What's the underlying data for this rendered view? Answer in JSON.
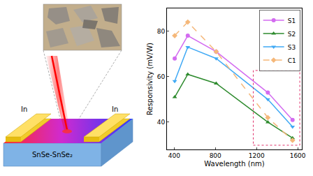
{
  "chart_data": {
    "type": "line",
    "x_label": "Wavelength (nm)",
    "y_label": "Responsivity (mV/W)",
    "x": [
      405,
      532,
      808,
      1310,
      1550
    ],
    "series": [
      {
        "name": "S1",
        "color": "#d36bf0",
        "marker": "circle",
        "line_style": "solid",
        "values": [
          68,
          78,
          71,
          53,
          41
        ]
      },
      {
        "name": "S2",
        "color": "#2e8b2e",
        "marker": "triangle-up",
        "line_style": "solid",
        "values": [
          51,
          61,
          57,
          40,
          33
        ]
      },
      {
        "name": "S3",
        "color": "#3fa9f5",
        "marker": "triangle-down",
        "line_style": "solid",
        "values": [
          58,
          73,
          68,
          50,
          38
        ]
      },
      {
        "name": "C1",
        "color": "#f5b87a",
        "marker": "diamond",
        "line_style": "dash",
        "values": [
          78,
          84,
          71,
          42,
          32
        ]
      }
    ],
    "xlim": [
      330,
      1640
    ],
    "xticks": [
      400,
      800,
      1200,
      1600
    ],
    "ylim": [
      28,
      90
    ],
    "yticks": [
      40,
      60,
      80
    ],
    "grid": false,
    "legend": "upper right"
  },
  "diagram": {
    "material": "SnSe-SnSe₂",
    "electrode_left": "In",
    "electrode_right": "In"
  }
}
